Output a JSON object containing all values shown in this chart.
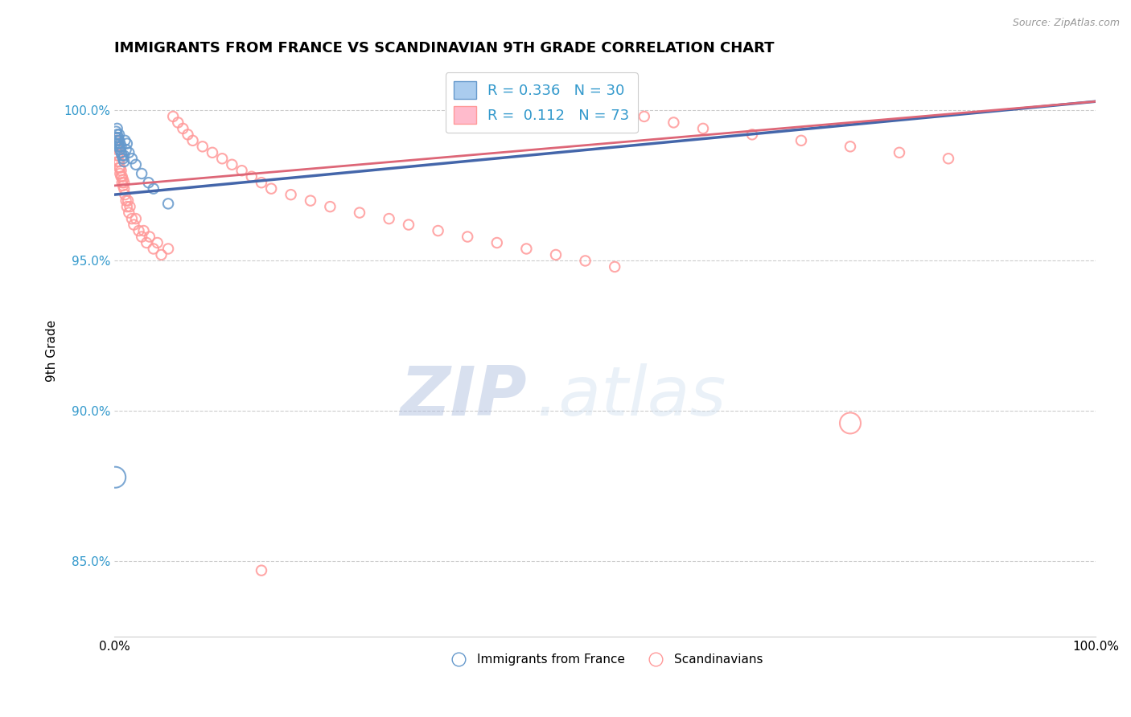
{
  "title": "IMMIGRANTS FROM FRANCE VS SCANDINAVIAN 9TH GRADE CORRELATION CHART",
  "source_text": "Source: ZipAtlas.com",
  "ylabel": "9th Grade",
  "legend_R1": "0.336",
  "legend_N1": "30",
  "legend_R2": "0.112",
  "legend_N2": "73",
  "blue_color": "#6699CC",
  "pink_color": "#FF9999",
  "line_blue": "#4466AA",
  "line_pink": "#DD6677",
  "watermark_zip": "ZIP",
  "watermark_atlas": ".atlas",
  "background_color": "#FFFFFF",
  "grid_color": "#CCCCCC",
  "ytick_color": "#3399CC",
  "blue_x": [
    0.001,
    0.002,
    0.002,
    0.003,
    0.003,
    0.003,
    0.004,
    0.004,
    0.005,
    0.005,
    0.005,
    0.006,
    0.006,
    0.007,
    0.007,
    0.008,
    0.009,
    0.01,
    0.01,
    0.011,
    0.012,
    0.013,
    0.015,
    0.018,
    0.022,
    0.028,
    0.035,
    0.04,
    0.055,
    0.001
  ],
  "blue_y": [
    0.989,
    0.991,
    0.993,
    0.99,
    0.992,
    0.994,
    0.989,
    0.991,
    0.988,
    0.99,
    0.992,
    0.987,
    0.989,
    0.986,
    0.988,
    0.985,
    0.984,
    0.983,
    0.985,
    0.99,
    0.987,
    0.989,
    0.986,
    0.984,
    0.982,
    0.979,
    0.976,
    0.974,
    0.969,
    0.878
  ],
  "blue_sizes": [
    80,
    80,
    80,
    80,
    80,
    80,
    80,
    80,
    80,
    80,
    80,
    80,
    80,
    80,
    80,
    80,
    80,
    80,
    80,
    80,
    80,
    80,
    80,
    80,
    80,
    80,
    80,
    80,
    80,
    350
  ],
  "pink_x": [
    0.001,
    0.002,
    0.002,
    0.003,
    0.003,
    0.004,
    0.004,
    0.005,
    0.005,
    0.006,
    0.006,
    0.007,
    0.007,
    0.008,
    0.008,
    0.009,
    0.009,
    0.01,
    0.01,
    0.011,
    0.012,
    0.013,
    0.014,
    0.015,
    0.016,
    0.018,
    0.02,
    0.022,
    0.025,
    0.028,
    0.03,
    0.033,
    0.036,
    0.04,
    0.044,
    0.048,
    0.055,
    0.06,
    0.065,
    0.07,
    0.075,
    0.08,
    0.09,
    0.1,
    0.11,
    0.12,
    0.13,
    0.14,
    0.15,
    0.16,
    0.18,
    0.2,
    0.22,
    0.25,
    0.28,
    0.3,
    0.33,
    0.36,
    0.39,
    0.42,
    0.45,
    0.48,
    0.51,
    0.54,
    0.57,
    0.6,
    0.65,
    0.7,
    0.75,
    0.8,
    0.85,
    0.75,
    0.15
  ],
  "pink_y": [
    0.986,
    0.988,
    0.99,
    0.985,
    0.987,
    0.983,
    0.985,
    0.981,
    0.983,
    0.979,
    0.981,
    0.978,
    0.98,
    0.976,
    0.978,
    0.975,
    0.977,
    0.974,
    0.976,
    0.972,
    0.97,
    0.968,
    0.97,
    0.966,
    0.968,
    0.964,
    0.962,
    0.964,
    0.96,
    0.958,
    0.96,
    0.956,
    0.958,
    0.954,
    0.956,
    0.952,
    0.954,
    0.998,
    0.996,
    0.994,
    0.992,
    0.99,
    0.988,
    0.986,
    0.984,
    0.982,
    0.98,
    0.978,
    0.976,
    0.974,
    0.972,
    0.97,
    0.968,
    0.966,
    0.964,
    0.962,
    0.96,
    0.958,
    0.956,
    0.954,
    0.952,
    0.95,
    0.948,
    0.998,
    0.996,
    0.994,
    0.992,
    0.99,
    0.988,
    0.986,
    0.984,
    0.896,
    0.847
  ],
  "pink_sizes": [
    80,
    80,
    80,
    80,
    80,
    80,
    80,
    80,
    80,
    80,
    80,
    80,
    80,
    80,
    80,
    80,
    80,
    80,
    80,
    80,
    80,
    80,
    80,
    80,
    80,
    80,
    80,
    80,
    80,
    80,
    80,
    80,
    80,
    80,
    80,
    80,
    80,
    80,
    80,
    80,
    80,
    80,
    80,
    80,
    80,
    80,
    80,
    80,
    80,
    80,
    80,
    80,
    80,
    80,
    80,
    80,
    80,
    80,
    80,
    80,
    80,
    80,
    80,
    80,
    80,
    80,
    80,
    80,
    80,
    80,
    80,
    350,
    80
  ],
  "blue_line_x": [
    0.0,
    1.0
  ],
  "blue_line_y": [
    0.972,
    1.003
  ],
  "pink_line_x": [
    0.0,
    1.0
  ],
  "pink_line_y": [
    0.975,
    1.003
  ],
  "xlim": [
    0.0,
    1.0
  ],
  "ylim": [
    0.825,
    1.015
  ],
  "yticks": [
    0.85,
    0.9,
    0.95,
    1.0
  ],
  "ytick_labels": [
    "85.0%",
    "90.0%",
    "95.0%",
    "100.0%"
  ]
}
